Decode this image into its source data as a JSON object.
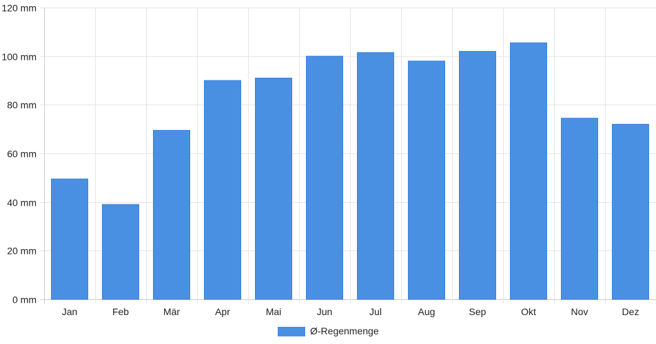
{
  "chart_data": {
    "type": "bar",
    "categories": [
      "Jan",
      "Feb",
      "Mär",
      "Apr",
      "Mai",
      "Jun",
      "Jul",
      "Aug",
      "Sep",
      "Okt",
      "Nov",
      "Dez"
    ],
    "series": [
      {
        "name": "Ø-Regenmenge",
        "values": [
          49.5,
          39,
          69.5,
          90,
          91,
          100,
          101.5,
          98,
          102,
          105.5,
          74.5,
          72
        ],
        "color": "#4a90e2"
      }
    ],
    "y_unit": "mm",
    "y_ticks": [
      "0 mm",
      "20 mm",
      "40 mm",
      "60 mm",
      "80 mm",
      "100 mm",
      "120 mm"
    ],
    "ylim": [
      0,
      120
    ],
    "y_step": 20,
    "grid": true,
    "legend_position": "bottom-center",
    "grid_color": "#e6e6e6",
    "axis_color": "#cccccc"
  }
}
